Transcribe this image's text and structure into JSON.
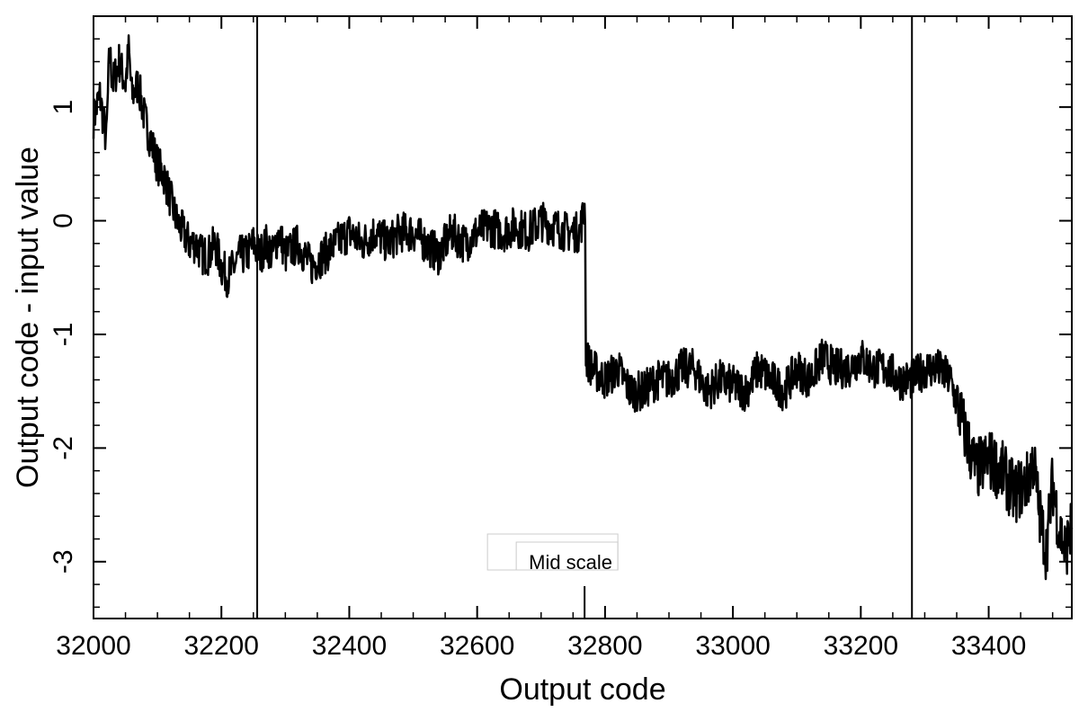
{
  "chart_data": {
    "type": "line",
    "title": "",
    "xlabel": "Output code",
    "ylabel": "Output code - input value",
    "xlim": [
      32000,
      33530
    ],
    "ylim": [
      -3.5,
      1.8
    ],
    "xticks": [
      32000,
      32200,
      32400,
      32600,
      32800,
      33000,
      33200,
      33400
    ],
    "yticks": [
      1,
      0,
      -1,
      -2,
      -3
    ],
    "grid": false,
    "legend": "none",
    "line_color": "#000000",
    "vertical_lines": [
      32256,
      33280
    ],
    "annotation": {
      "label": "Mid scale",
      "x": 32768
    },
    "series": [
      {
        "values_note_free": true,
        "x": [
          32000,
          32010,
          32020,
          32025,
          32030,
          32040,
          32050,
          32055,
          32060,
          32070,
          32080,
          32090,
          32100,
          32110,
          32120,
          32130,
          32140,
          32150,
          32160,
          32170,
          32180,
          32190,
          32200,
          32210,
          32220,
          32230,
          32240,
          32250,
          32260,
          32270,
          32280,
          32290,
          32300,
          32320,
          32340,
          32360,
          32380,
          32400,
          32420,
          32440,
          32460,
          32480,
          32500,
          32520,
          32540,
          32560,
          32580,
          32600,
          32620,
          32640,
          32660,
          32680,
          32700,
          32720,
          32740,
          32760,
          32768,
          32770,
          32780,
          32800,
          32820,
          32840,
          32860,
          32880,
          32900,
          32920,
          32940,
          32960,
          32980,
          33000,
          33020,
          33040,
          33060,
          33080,
          33100,
          33120,
          33140,
          33160,
          33180,
          33200,
          33220,
          33240,
          33260,
          33280,
          33300,
          33320,
          33340,
          33350,
          33360,
          33380,
          33400,
          33420,
          33440,
          33460,
          33470,
          33480,
          33490,
          33500,
          33510,
          33520,
          33530
        ],
        "y": [
          0.9,
          1.1,
          0.7,
          1.5,
          1.2,
          1.4,
          1.2,
          1.5,
          1.1,
          1.2,
          0.9,
          0.7,
          0.5,
          0.4,
          0.2,
          0.0,
          -0.1,
          -0.2,
          -0.2,
          -0.3,
          -0.3,
          -0.2,
          -0.4,
          -0.5,
          -0.4,
          -0.3,
          -0.3,
          -0.2,
          -0.3,
          -0.2,
          -0.3,
          -0.1,
          -0.3,
          -0.2,
          -0.4,
          -0.3,
          -0.2,
          -0.1,
          -0.2,
          -0.1,
          -0.2,
          -0.1,
          -0.1,
          -0.2,
          -0.3,
          -0.1,
          -0.2,
          -0.1,
          -0.05,
          -0.1,
          -0.05,
          -0.1,
          0.0,
          -0.05,
          -0.1,
          -0.1,
          0.1,
          -1.2,
          -1.3,
          -1.4,
          -1.3,
          -1.5,
          -1.5,
          -1.4,
          -1.4,
          -1.3,
          -1.3,
          -1.5,
          -1.4,
          -1.45,
          -1.5,
          -1.3,
          -1.4,
          -1.5,
          -1.3,
          -1.4,
          -1.2,
          -1.3,
          -1.3,
          -1.2,
          -1.3,
          -1.3,
          -1.4,
          -1.4,
          -1.3,
          -1.3,
          -1.4,
          -1.6,
          -1.8,
          -2.2,
          -2.1,
          -2.2,
          -2.4,
          -2.3,
          -2.1,
          -2.6,
          -2.9,
          -2.3,
          -2.7,
          -2.9,
          -2.7
        ]
      }
    ]
  }
}
